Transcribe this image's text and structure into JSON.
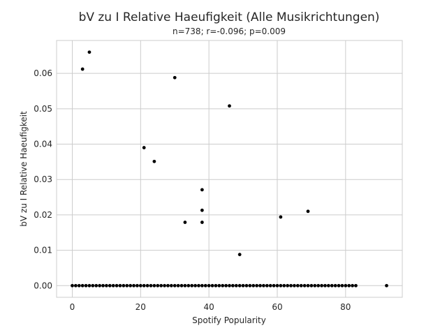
{
  "chart_data": {
    "type": "scatter",
    "title": "bV zu I Relative Haeufigkeit (Alle Musikrichtungen)",
    "subtitle": "n=738; r=-0.096; p=0.009",
    "xlabel": "Spotify Popularity",
    "ylabel": "bV zu I Relative Haeufigkeit",
    "xlim": [
      -4.6,
      96.6
    ],
    "ylim": [
      -0.0033,
      0.0693
    ],
    "xticks": [
      0,
      20,
      40,
      60,
      80
    ],
    "yticks": [
      0.0,
      0.01,
      0.02,
      0.03,
      0.04,
      0.05,
      0.06
    ],
    "ytick_labels": [
      "0.00",
      "0.01",
      "0.02",
      "0.03",
      "0.04",
      "0.05",
      "0.06"
    ],
    "grid": true,
    "marker_color": "#000000",
    "points": [
      [
        3,
        0.0612
      ],
      [
        5,
        0.066
      ],
      [
        30,
        0.0588
      ],
      [
        46,
        0.0508
      ],
      [
        21,
        0.039
      ],
      [
        24,
        0.0351
      ],
      [
        38,
        0.0271
      ],
      [
        38,
        0.0213
      ],
      [
        69,
        0.021
      ],
      [
        61,
        0.0194
      ],
      [
        33,
        0.0179
      ],
      [
        38,
        0.0179
      ],
      [
        49,
        0.0088
      ],
      [
        92,
        0.0
      ]
    ],
    "zero_baseline_x_range": [
      0,
      83
    ]
  }
}
